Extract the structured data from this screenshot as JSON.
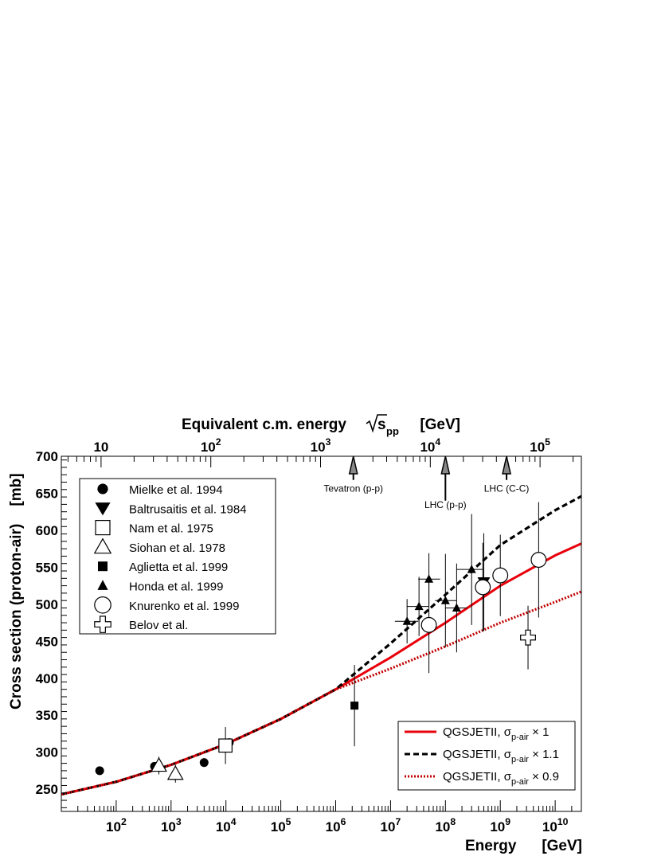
{
  "chart_data": {
    "type": "scatter",
    "xscale": "log",
    "xlim": [
      10,
      30000000000.0
    ],
    "ylim": [
      220,
      700
    ],
    "xlabel": "Energy",
    "xunit": "[GeV]",
    "ylabel": "Cross section (proton-air)",
    "yunit": "[mb]",
    "top_axis": {
      "title": "Equivalent c.m. energy",
      "title_symbol": "s",
      "title_symbol_sub": "pp",
      "unit": "[GeV]",
      "scale": "log",
      "ticks": [
        {
          "label": "10",
          "at_energy": 53
        },
        {
          "label": "10",
          "sup": "2",
          "at_energy": 5300
        },
        {
          "label": "10",
          "sup": "3",
          "at_energy": 530000
        },
        {
          "label": "10",
          "sup": "4",
          "at_energy": 53000000.0
        },
        {
          "label": "10",
          "sup": "5",
          "at_energy": 5300000000.0
        }
      ]
    },
    "x_ticks": [
      {
        "label": "10",
        "sup": "2",
        "value": 100
      },
      {
        "label": "10",
        "sup": "3",
        "value": 1000
      },
      {
        "label": "10",
        "sup": "4",
        "value": 10000
      },
      {
        "label": "10",
        "sup": "5",
        "value": 100000
      },
      {
        "label": "10",
        "sup": "6",
        "value": 1000000
      },
      {
        "label": "10",
        "sup": "7",
        "value": 10000000
      },
      {
        "label": "10",
        "sup": "8",
        "value": 100000000
      },
      {
        "label": "10",
        "sup": "9",
        "value": 1000000000
      },
      {
        "label": "10",
        "sup": "10",
        "value": 10000000000
      }
    ],
    "y_ticks": [
      {
        "label": "250",
        "value": 250
      },
      {
        "label": "300",
        "value": 300
      },
      {
        "label": "350",
        "value": 350
      },
      {
        "label": "400",
        "value": 400
      },
      {
        "label": "450",
        "value": 450
      },
      {
        "label": "500",
        "value": 500
      },
      {
        "label": "550",
        "value": 550
      },
      {
        "label": "600",
        "value": 600
      },
      {
        "label": "650",
        "value": 650
      },
      {
        "label": "700",
        "value": 700
      }
    ],
    "annotations": [
      {
        "text": "Tevatron (p-p)",
        "energy": 2100000.0,
        "arrow_tip_y": 700,
        "arrow_base_y": 668,
        "text_y": 652
      },
      {
        "text": "LHC (p-p)",
        "energy": 100000000.0,
        "arrow_tip_y": 700,
        "arrow_base_y": 640,
        "text_y": 630
      },
      {
        "text": "LHC (C-C)",
        "energy": 1300000000.0,
        "arrow_tip_y": 700,
        "arrow_base_y": 668,
        "text_y": 652
      }
    ],
    "legend": {
      "placement": "top-left",
      "entries": [
        {
          "label": "Mielke et al. 1994",
          "marker": "circle-filled"
        },
        {
          "label": "Baltrusaitis et al. 1984",
          "marker": "triangle-down-filled"
        },
        {
          "label": "Nam et al. 1975",
          "marker": "square-open"
        },
        {
          "label": "Siohan et al. 1978",
          "marker": "triangle-up-open"
        },
        {
          "label": "Aglietta et al. 1999",
          "marker": "square-filled"
        },
        {
          "label": "Honda et al. 1999",
          "marker": "triangle-up-filled"
        },
        {
          "label": "Knurenko et al. 1999",
          "marker": "circle-open"
        },
        {
          "label": "Belov et al.",
          "marker": "cross-open"
        }
      ]
    },
    "model_legend": {
      "placement": "bottom-right",
      "entries": [
        {
          "prefix": "QGSJETII, ",
          "symbol": "σ",
          "sub": "p-air",
          "suffix": " × 1",
          "color": "#e8000b",
          "style": "solid"
        },
        {
          "prefix": "QGSJETII, ",
          "symbol": "σ",
          "sub": "p-air",
          "suffix": " × 1.1",
          "color": "#000000",
          "style": "dashed"
        },
        {
          "prefix": "QGSJETII, ",
          "symbol": "σ",
          "sub": "p-air",
          "suffix": " × 0.9",
          "color": "#c00000",
          "style": "dotted"
        }
      ]
    },
    "series": [
      {
        "name": "Mielke et al. 1994",
        "marker": "circle-filled",
        "points": [
          {
            "x": 50,
            "y": 275
          },
          {
            "x": 500,
            "y": 281
          },
          {
            "x": 4000,
            "y": 286
          },
          {
            "x": 11500,
            "y": 313
          }
        ]
      },
      {
        "name": "Baltrusaitis et al. 1984",
        "marker": "triangle-down-filled",
        "points": [
          {
            "x": 500000000.0,
            "y": 530,
            "yerr": 66
          }
        ]
      },
      {
        "name": "Nam et al. 1975",
        "marker": "square-open",
        "points": [
          {
            "x": 9800,
            "y": 309,
            "yerr": 25
          }
        ]
      },
      {
        "name": "Siohan et al. 1978",
        "marker": "triangle-up-open",
        "points": [
          {
            "x": 600,
            "y": 282,
            "yerr": 12
          },
          {
            "x": 1200,
            "y": 271,
            "yerr": 12
          }
        ]
      },
      {
        "name": "Aglietta et al. 1999",
        "marker": "square-filled",
        "points": [
          {
            "x": 2200000.0,
            "y": 363,
            "yerr": 55
          }
        ]
      },
      {
        "name": "Honda et al. 1999",
        "marker": "triangle-up-filled",
        "points": [
          {
            "x": 20000000.0,
            "y": 477,
            "yerr": 30,
            "xlo": 12000000.0,
            "xhi": 32000000.0
          },
          {
            "x": 33000000.0,
            "y": 497,
            "yerr": 40,
            "xlo": 20000000.0,
            "xhi": 50000000.0
          },
          {
            "x": 50000000.0,
            "y": 534,
            "yerr": 35,
            "xlo": 32000000.0,
            "xhi": 80000000.0
          },
          {
            "x": 100000000.0,
            "y": 505,
            "yerr": 63,
            "xlo": 65000000.0,
            "xhi": 160000000.0
          },
          {
            "x": 160000000.0,
            "y": 495,
            "yerr": 60,
            "xlo": 100000000.0,
            "xhi": 250000000.0
          },
          {
            "x": 300000000.0,
            "y": 547,
            "yerr": 75,
            "xlo": 160000000.0,
            "xhi": 480000000.0
          }
        ]
      },
      {
        "name": "Knurenko et al. 1999",
        "marker": "circle-open",
        "points": [
          {
            "x": 50000000.0,
            "y": 472,
            "yerr": 65
          },
          {
            "x": 480000000.0,
            "y": 523,
            "yerr": 60
          },
          {
            "x": 1000000000.0,
            "y": 539,
            "yerr": 55
          },
          {
            "x": 5000000000.0,
            "y": 560,
            "yerr": 78
          }
        ]
      },
      {
        "name": "Belov et al.",
        "marker": "cross-open",
        "points": [
          {
            "x": 3200000000.0,
            "y": 455,
            "yerr": 43
          }
        ]
      }
    ],
    "curves": [
      {
        "name": "QGSJETII, σp-air × 1",
        "color": "#e8000b",
        "style": "solid",
        "points": [
          [
            10,
            243
          ],
          [
            100,
            260
          ],
          [
            1000,
            283
          ],
          [
            10000,
            311
          ],
          [
            100000,
            345
          ],
          [
            1000000,
            385
          ],
          [
            10000000,
            428
          ],
          [
            100000000,
            475
          ],
          [
            1000000000,
            525
          ],
          [
            10000000000,
            566
          ],
          [
            30000000000,
            582
          ]
        ]
      },
      {
        "name": "QGSJETII, σp-air × 1.1",
        "color": "#000000",
        "style": "dashed",
        "points": [
          [
            10,
            243
          ],
          [
            100,
            260
          ],
          [
            1000,
            283
          ],
          [
            10000,
            311
          ],
          [
            100000,
            345
          ],
          [
            1000000,
            385
          ],
          [
            10000000,
            447
          ],
          [
            100000000,
            513
          ],
          [
            1000000000,
            580
          ],
          [
            10000000000,
            627
          ],
          [
            30000000000,
            646
          ]
        ]
      },
      {
        "name": "QGSJETII, σp-air × 0.9",
        "color": "#c00000",
        "style": "dotted",
        "points": [
          [
            10,
            243
          ],
          [
            100,
            260
          ],
          [
            1000,
            283
          ],
          [
            10000,
            311
          ],
          [
            100000,
            345
          ],
          [
            1000000,
            385
          ],
          [
            10000000,
            413
          ],
          [
            100000000,
            443
          ],
          [
            1000000000,
            475
          ],
          [
            10000000000,
            503
          ],
          [
            30000000000,
            517
          ]
        ]
      }
    ]
  }
}
